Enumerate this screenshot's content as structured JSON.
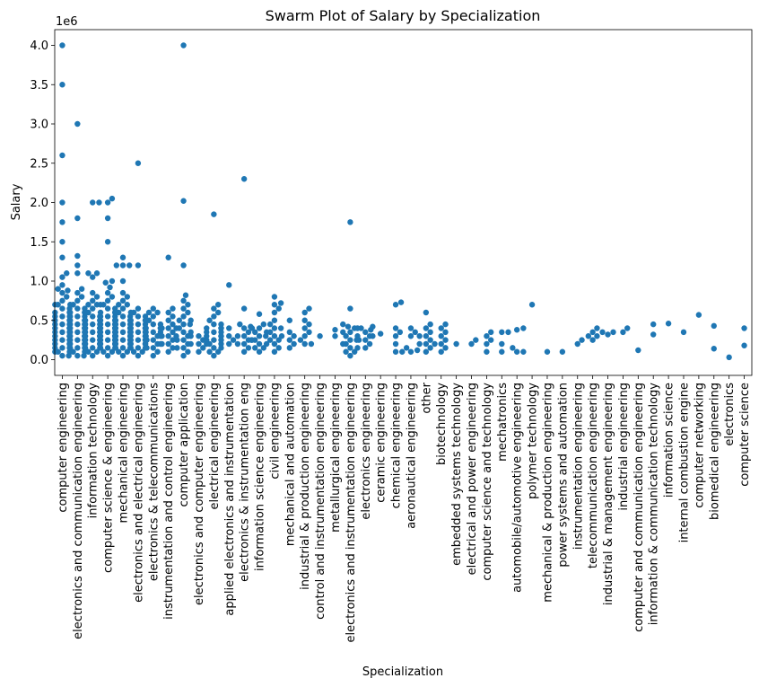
{
  "chart_data": {
    "type": "scatter",
    "subtype": "swarm",
    "title": "Swarm Plot of Salary by Specialization",
    "xlabel": "Specialization",
    "ylabel": "Salary",
    "y_offset_label": "1e6",
    "ylim": [
      -0.2,
      4.2
    ],
    "yticks": [
      "0.0",
      "0.5",
      "1.0",
      "1.5",
      "2.0",
      "2.5",
      "3.0",
      "3.5",
      "4.0"
    ],
    "point_color": "#1f77b4",
    "grid": false,
    "legend": "none",
    "categories": [
      "computer engineering",
      "electronics and communication engineering",
      "information technology",
      "computer science & engineering",
      "mechanical engineering",
      "electronics and electrical engineering",
      "electronics & telecommunications",
      "instrumentation and control engineering",
      "computer application",
      "electronics and computer engineering",
      "electrical engineering",
      "applied electronics and instrumentation",
      "electronics & instrumentation eng",
      "information science engineering",
      "civil engineering",
      "mechanical and automation",
      "industrial & production engineering",
      "control and instrumentation engineering",
      "metallurgical engineering",
      "electronics and instrumentation engineering",
      "electronics engineering",
      "ceramic engineering",
      "chemical engineering",
      "aeronautical engineering",
      "other",
      "biotechnology",
      "embedded systems technology",
      "electrical and power engineering",
      "computer science and technology",
      "mechatronics",
      "automobile/automotive engineering",
      "polymer technology",
      "mechanical & production engineering",
      "power systems and automation",
      "instrumentation engineering",
      "telecommunication engineering",
      "industrial & management engineering",
      "industrial engineering",
      "computer and communication engineering",
      "information & communication technology",
      "information science",
      "internal combustion engine",
      "computer networking",
      "biomedical engineering",
      "electronics",
      "computer science"
    ],
    "series": [
      {
        "values": [
          [
            4.0,
            3.5,
            2.6,
            2.0,
            1.75,
            1.5,
            1.3,
            1.1,
            1.05,
            0.95,
            0.9,
            0.88,
            0.85,
            0.8,
            0.75,
            0.7,
            0.7,
            0.65,
            0.65,
            0.6,
            0.6,
            0.6,
            0.55,
            0.55,
            0.55,
            0.5,
            0.5,
            0.5,
            0.5,
            0.45,
            0.45,
            0.45,
            0.45,
            0.4,
            0.4,
            0.4,
            0.4,
            0.4,
            0.35,
            0.35,
            0.35,
            0.35,
            0.35,
            0.3,
            0.3,
            0.3,
            0.3,
            0.3,
            0.3,
            0.25,
            0.25,
            0.25,
            0.25,
            0.25,
            0.2,
            0.2,
            0.2,
            0.2,
            0.2,
            0.15,
            0.15,
            0.15,
            0.15,
            0.1,
            0.1,
            0.1,
            0.05,
            0.05
          ],
          [
            3.0,
            1.8,
            1.32,
            1.2,
            1.1,
            0.9,
            0.85,
            0.8,
            0.75,
            0.7,
            0.7,
            0.65,
            0.65,
            0.6,
            0.6,
            0.6,
            0.55,
            0.55,
            0.55,
            0.5,
            0.5,
            0.5,
            0.5,
            0.45,
            0.45,
            0.45,
            0.45,
            0.4,
            0.4,
            0.4,
            0.4,
            0.4,
            0.35,
            0.35,
            0.35,
            0.35,
            0.35,
            0.3,
            0.3,
            0.3,
            0.3,
            0.3,
            0.3,
            0.25,
            0.25,
            0.25,
            0.25,
            0.25,
            0.2,
            0.2,
            0.2,
            0.2,
            0.2,
            0.15,
            0.15,
            0.15,
            0.15,
            0.1,
            0.1,
            0.1,
            0.05,
            0.05
          ],
          [
            2.0,
            2.0,
            1.1,
            1.05,
            1.1,
            0.85,
            0.8,
            0.75,
            0.7,
            0.7,
            0.65,
            0.6,
            0.6,
            0.55,
            0.55,
            0.5,
            0.5,
            0.5,
            0.45,
            0.45,
            0.45,
            0.4,
            0.4,
            0.4,
            0.4,
            0.35,
            0.35,
            0.35,
            0.35,
            0.3,
            0.3,
            0.3,
            0.3,
            0.3,
            0.25,
            0.25,
            0.25,
            0.25,
            0.2,
            0.2,
            0.2,
            0.2,
            0.15,
            0.15,
            0.15,
            0.1,
            0.1,
            0.05
          ],
          [
            2.05,
            2.0,
            1.8,
            1.5,
            1.0,
            0.98,
            0.92,
            0.85,
            0.8,
            0.75,
            0.7,
            0.7,
            0.65,
            0.65,
            0.6,
            0.6,
            0.6,
            0.55,
            0.55,
            0.55,
            0.5,
            0.5,
            0.5,
            0.5,
            0.45,
            0.45,
            0.45,
            0.45,
            0.4,
            0.4,
            0.4,
            0.4,
            0.4,
            0.35,
            0.35,
            0.35,
            0.35,
            0.35,
            0.3,
            0.3,
            0.3,
            0.3,
            0.3,
            0.25,
            0.25,
            0.25,
            0.25,
            0.25,
            0.2,
            0.2,
            0.2,
            0.2,
            0.15,
            0.15,
            0.15,
            0.1,
            0.1,
            0.05
          ],
          [
            1.3,
            1.2,
            1.2,
            1.2,
            1.0,
            0.85,
            0.8,
            0.75,
            0.7,
            0.7,
            0.65,
            0.6,
            0.6,
            0.55,
            0.55,
            0.5,
            0.5,
            0.5,
            0.45,
            0.45,
            0.45,
            0.4,
            0.4,
            0.4,
            0.4,
            0.35,
            0.35,
            0.35,
            0.35,
            0.3,
            0.3,
            0.3,
            0.3,
            0.25,
            0.25,
            0.25,
            0.25,
            0.2,
            0.2,
            0.2,
            0.15,
            0.15,
            0.15,
            0.1,
            0.1,
            0.05
          ],
          [
            2.5,
            1.2,
            0.65,
            0.6,
            0.6,
            0.55,
            0.55,
            0.5,
            0.5,
            0.5,
            0.45,
            0.45,
            0.45,
            0.4,
            0.4,
            0.4,
            0.4,
            0.35,
            0.35,
            0.35,
            0.35,
            0.3,
            0.3,
            0.3,
            0.3,
            0.25,
            0.25,
            0.25,
            0.25,
            0.2,
            0.2,
            0.2,
            0.2,
            0.15,
            0.15,
            0.15,
            0.1,
            0.1,
            0.05
          ],
          [
            0.65,
            0.6,
            0.6,
            0.55,
            0.5,
            0.5,
            0.45,
            0.45,
            0.4,
            0.4,
            0.4,
            0.35,
            0.35,
            0.35,
            0.3,
            0.3,
            0.3,
            0.25,
            0.25,
            0.2,
            0.2,
            0.15,
            0.15,
            0.1,
            0.05
          ],
          [
            1.3,
            0.65,
            0.6,
            0.55,
            0.5,
            0.45,
            0.4,
            0.4,
            0.35,
            0.3,
            0.3,
            0.25,
            0.2,
            0.2,
            0.15,
            0.1
          ],
          [
            4.0,
            2.02,
            1.2,
            0.82,
            0.75,
            0.7,
            0.65,
            0.6,
            0.55,
            0.5,
            0.5,
            0.45,
            0.45,
            0.4,
            0.4,
            0.35,
            0.35,
            0.3,
            0.3,
            0.3,
            0.25,
            0.25,
            0.2,
            0.2,
            0.15,
            0.15,
            0.1,
            0.05
          ],
          [
            0.3,
            0.25,
            0.2,
            0.15,
            0.1
          ],
          [
            1.85,
            0.7,
            0.65,
            0.6,
            0.55,
            0.5,
            0.45,
            0.45,
            0.4,
            0.4,
            0.4,
            0.35,
            0.35,
            0.35,
            0.3,
            0.3,
            0.3,
            0.25,
            0.25,
            0.25,
            0.2,
            0.2,
            0.2,
            0.15,
            0.15,
            0.1,
            0.1,
            0.05
          ],
          [
            0.95,
            0.4,
            0.3,
            0.25,
            0.2
          ],
          [
            2.3,
            0.65,
            0.45,
            0.42,
            0.4,
            0.35,
            0.3,
            0.3,
            0.25,
            0.25,
            0.2,
            0.2,
            0.15,
            0.1
          ],
          [
            0.58,
            0.45,
            0.4,
            0.4,
            0.35,
            0.35,
            0.3,
            0.3,
            0.25,
            0.25,
            0.2,
            0.2,
            0.15,
            0.15,
            0.1
          ],
          [
            0.8,
            0.72,
            0.7,
            0.65,
            0.6,
            0.5,
            0.45,
            0.4,
            0.4,
            0.35,
            0.3,
            0.3,
            0.25,
            0.25,
            0.2,
            0.15,
            0.1
          ],
          [
            0.5,
            0.35,
            0.3,
            0.25,
            0.2,
            0.15
          ],
          [
            0.65,
            0.6,
            0.5,
            0.45,
            0.4,
            0.35,
            0.3,
            0.25,
            0.2,
            0.2
          ],
          [
            0.3
          ],
          [
            0.38,
            0.3
          ],
          [
            1.75,
            0.65,
            0.45,
            0.42,
            0.4,
            0.4,
            0.35,
            0.35,
            0.3,
            0.3,
            0.25,
            0.25,
            0.2,
            0.2,
            0.15,
            0.15,
            0.1,
            0.1,
            0.05
          ],
          [
            0.42,
            0.4,
            0.38,
            0.35,
            0.3,
            0.3,
            0.25,
            0.25,
            0.2,
            0.15
          ],
          [
            0.33
          ],
          [
            0.73,
            0.7,
            0.4,
            0.35,
            0.3,
            0.2,
            0.1,
            0.1
          ],
          [
            0.4,
            0.35,
            0.3,
            0.15,
            0.12,
            0.1
          ],
          [
            0.6,
            0.45,
            0.4,
            0.35,
            0.3,
            0.3,
            0.25,
            0.2,
            0.2,
            0.15,
            0.1
          ],
          [
            0.45,
            0.4,
            0.35,
            0.3,
            0.25,
            0.2,
            0.2,
            0.15,
            0.1
          ],
          [
            0.2
          ],
          [
            0.25,
            0.2
          ],
          [
            0.35,
            0.3,
            0.25,
            0.2,
            0.1
          ],
          [
            0.35,
            0.35,
            0.2,
            0.1
          ],
          [
            0.4,
            0.38,
            0.15,
            0.1,
            0.1
          ],
          [
            0.7
          ],
          [
            0.1
          ],
          [
            0.1
          ],
          [
            0.25,
            0.2
          ],
          [
            0.4,
            0.35,
            0.3,
            0.3,
            0.25
          ],
          [
            0.35,
            0.35,
            0.32
          ],
          [
            0.4,
            0.35
          ],
          [
            0.12
          ],
          [
            0.45,
            0.32
          ],
          [
            0.46
          ],
          [
            0.35
          ],
          [
            0.57
          ],
          [
            0.43,
            0.14
          ],
          [
            0.03
          ],
          [
            0.4,
            0.18
          ]
        ]
      }
    ]
  }
}
